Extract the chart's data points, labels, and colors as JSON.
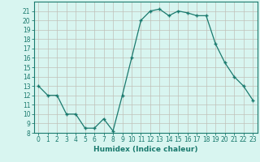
{
  "x": [
    0,
    1,
    2,
    3,
    4,
    5,
    6,
    7,
    8,
    9,
    10,
    11,
    12,
    13,
    14,
    15,
    16,
    17,
    18,
    19,
    20,
    21,
    22,
    23
  ],
  "y": [
    13,
    12,
    12,
    10,
    10,
    8.5,
    8.5,
    9.5,
    8.2,
    12,
    16,
    20,
    21,
    21.2,
    20.5,
    21,
    20.8,
    20.5,
    20.5,
    17.5,
    15.5,
    14,
    13,
    11.5
  ],
  "line_color": "#1a7a6e",
  "marker": "+",
  "bg_color": "#d8f5f0",
  "grid_color": "#c0c0b8",
  "xlabel": "Humidex (Indice chaleur)",
  "ylim": [
    8,
    22
  ],
  "xlim": [
    -0.5,
    23.5
  ],
  "yticks": [
    8,
    9,
    10,
    11,
    12,
    13,
    14,
    15,
    16,
    17,
    18,
    19,
    20,
    21
  ],
  "xticks": [
    0,
    1,
    2,
    3,
    4,
    5,
    6,
    7,
    8,
    9,
    10,
    11,
    12,
    13,
    14,
    15,
    16,
    17,
    18,
    19,
    20,
    21,
    22,
    23
  ],
  "tick_color": "#1a7a6e",
  "axis_color": "#1a7a6e",
  "font_color": "#1a7a6e",
  "label_fontsize": 6.5,
  "tick_fontsize": 5.5
}
